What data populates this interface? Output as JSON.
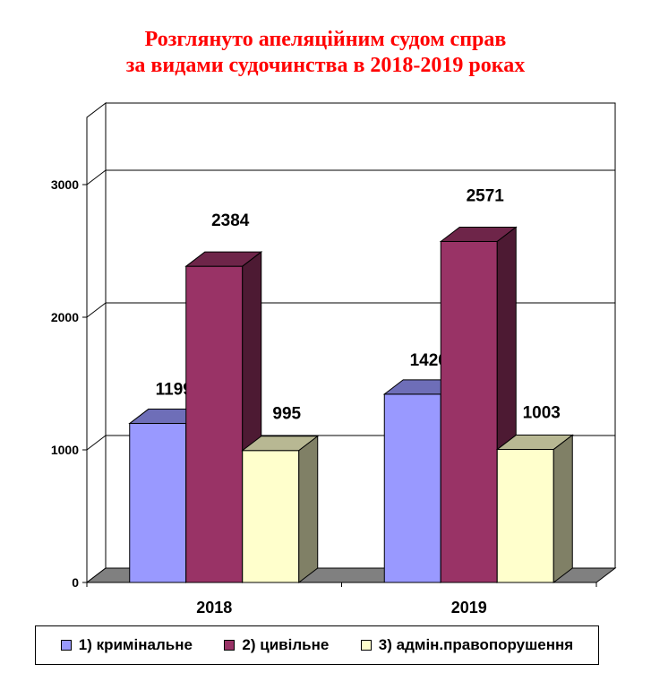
{
  "title_lines": [
    "Розглянуто апеляційним судом справ",
    "за видами судочинства в 2018-2019 роках"
  ],
  "chart_data": {
    "type": "bar",
    "categories": [
      "2018",
      "2019"
    ],
    "series": [
      {
        "name": "1) кримінальне",
        "values": [
          1199,
          1420
        ],
        "color": "#9999ff"
      },
      {
        "name": "2) цивільне",
        "values": [
          2384,
          2571
        ],
        "color": "#993366"
      },
      {
        "name": "3) адмін.правопорушення",
        "values": [
          995,
          1003
        ],
        "color": "#ffffcc"
      }
    ],
    "ylim": [
      0,
      3000
    ],
    "yticks": [
      0,
      1000,
      2000,
      3000
    ],
    "grid": true,
    "legend_position": "bottom",
    "three_d": true
  }
}
